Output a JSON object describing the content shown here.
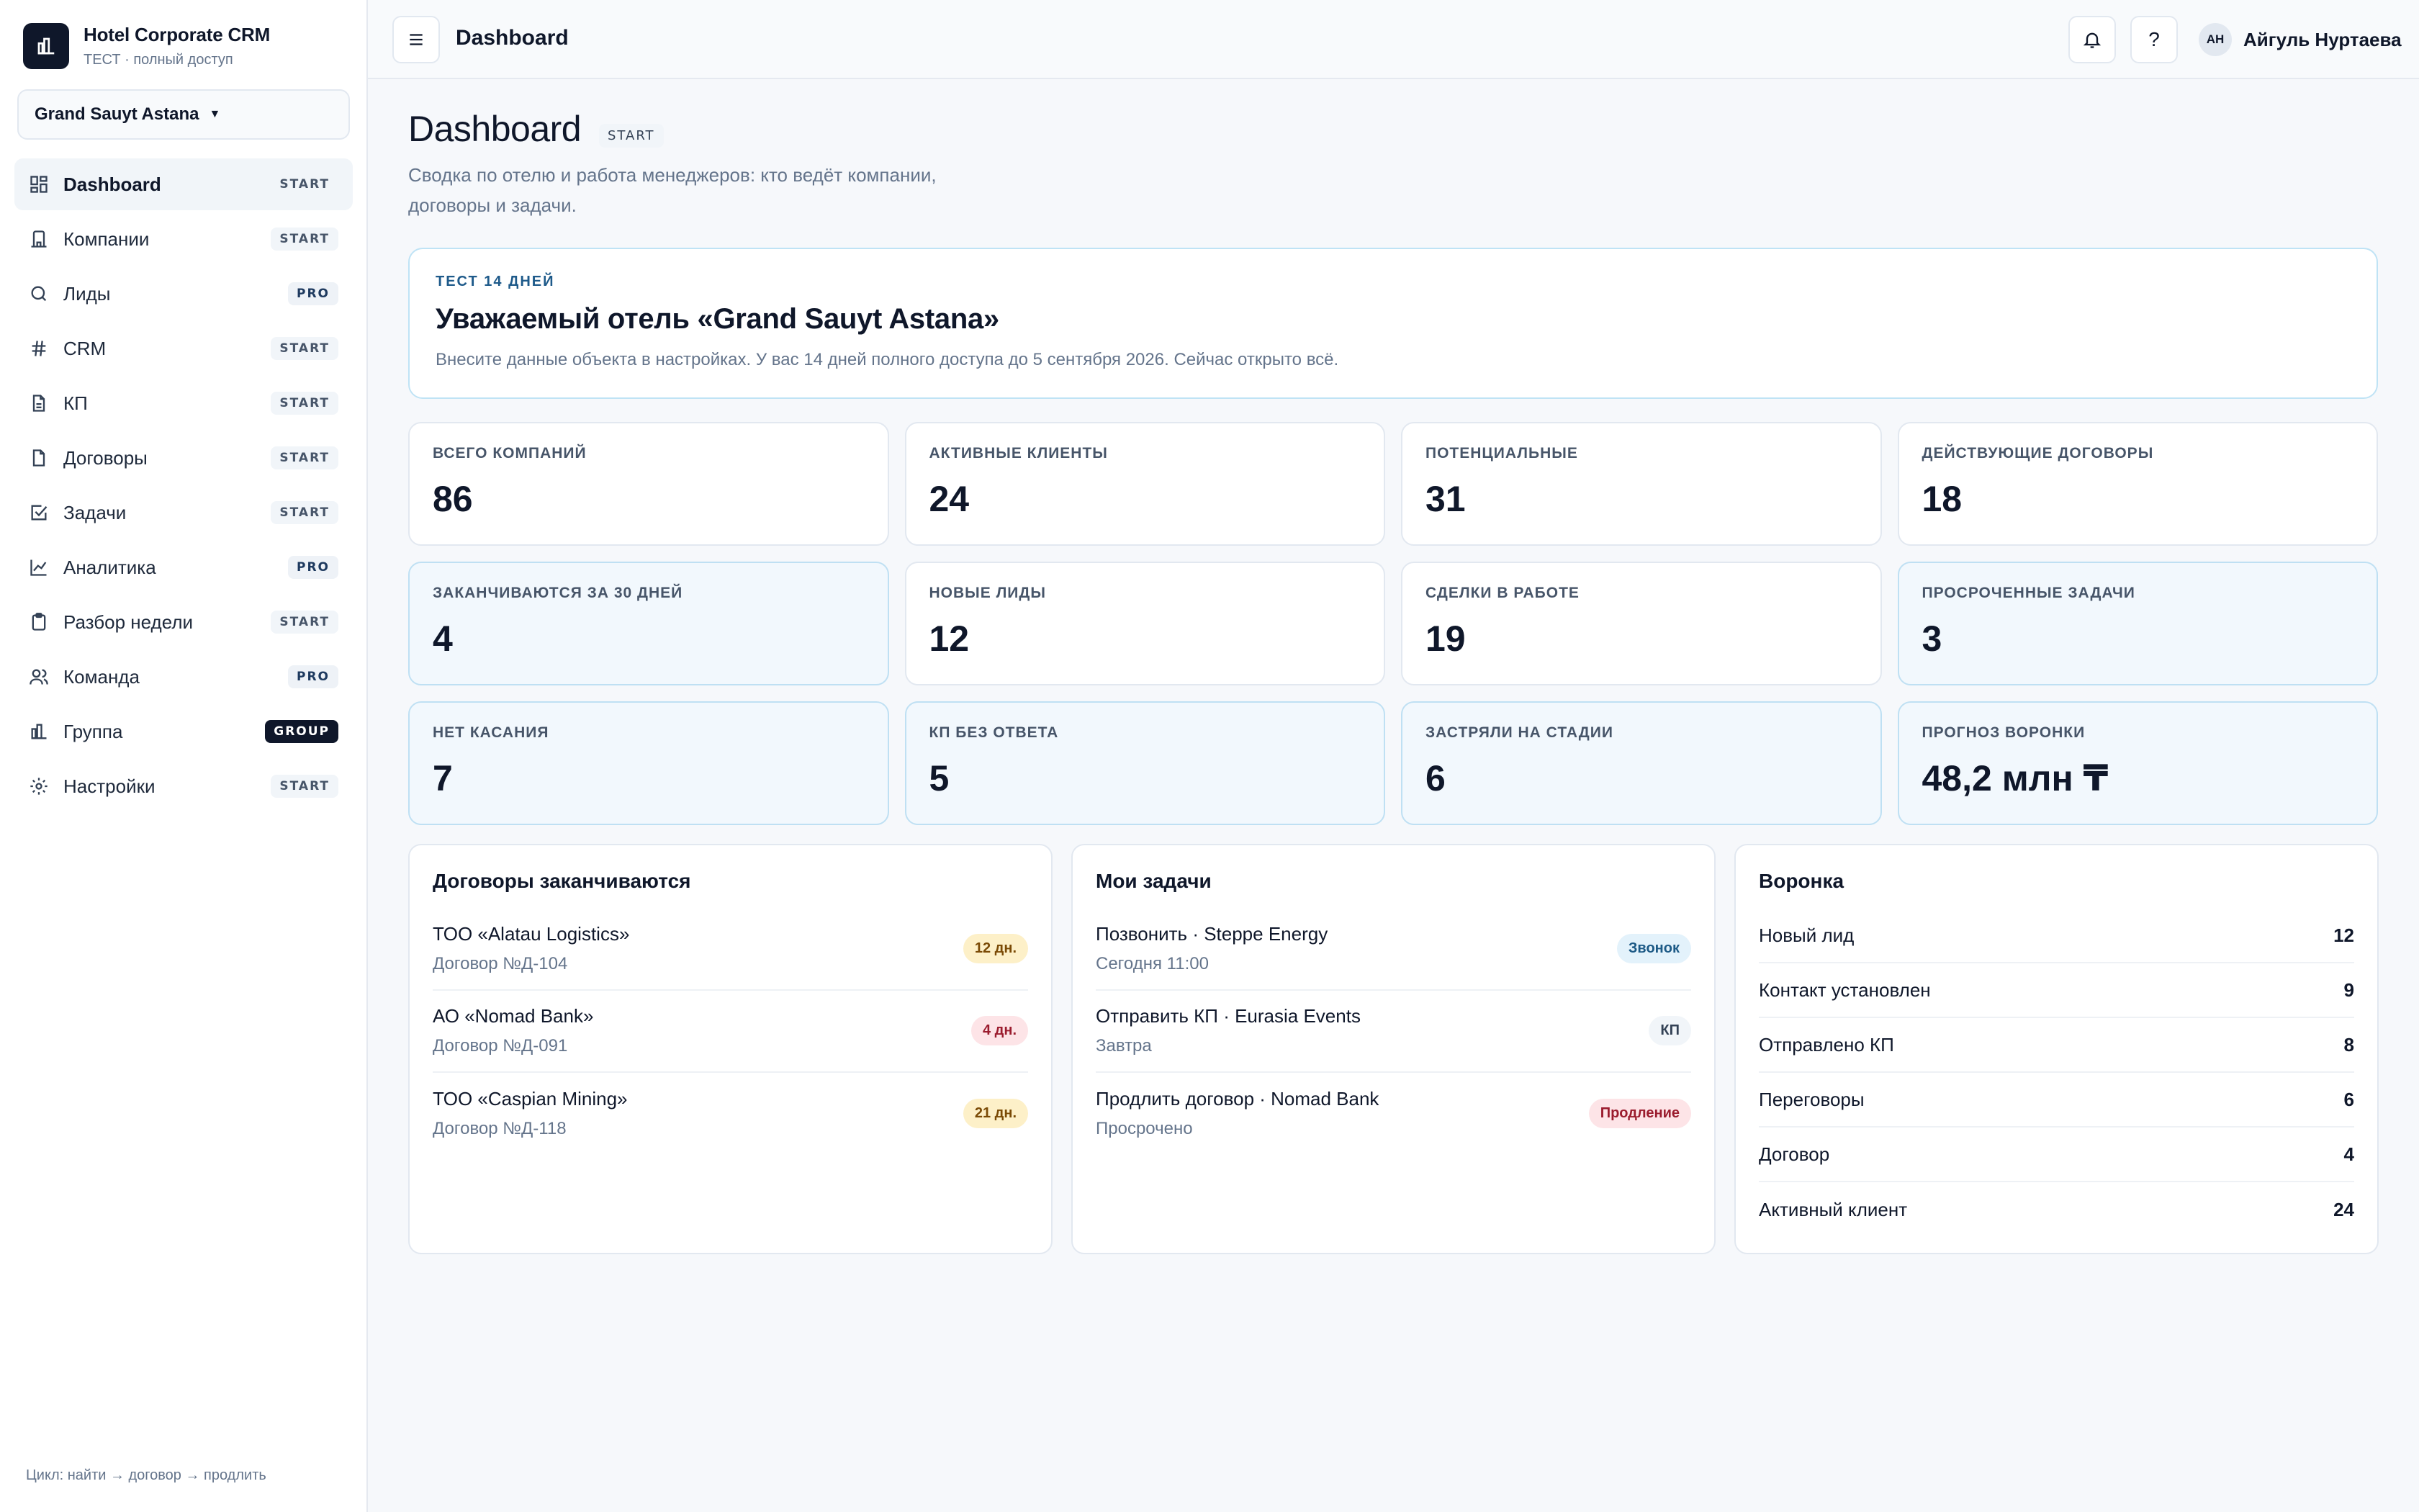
{
  "app": {
    "title": "Hotel Corporate CRM",
    "subtitle": "ТЕСТ · полный доступ"
  },
  "hotel_selector": {
    "value": "Grand Sauyt Astana"
  },
  "sidebar": {
    "items": [
      {
        "label": "Dashboard",
        "badge": "START",
        "icon": "dashboard-icon"
      },
      {
        "label": "Компании",
        "badge": "START",
        "icon": "building-icon"
      },
      {
        "label": "Лиды",
        "badge": "PRO",
        "icon": "search-icon"
      },
      {
        "label": "CRM",
        "badge": "START",
        "icon": "hash-icon"
      },
      {
        "label": "КП",
        "badge": "START",
        "icon": "file-text-icon"
      },
      {
        "label": "Договоры",
        "badge": "START",
        "icon": "file-icon"
      },
      {
        "label": "Задачи",
        "badge": "START",
        "icon": "check-square-icon"
      },
      {
        "label": "Аналитика",
        "badge": "PRO",
        "icon": "line-chart-icon"
      },
      {
        "label": "Разбор недели",
        "badge": "START",
        "icon": "clipboard-icon"
      },
      {
        "label": "Команда",
        "badge": "PRO",
        "icon": "users-icon"
      },
      {
        "label": "Группа",
        "badge": "GROUP",
        "icon": "bar-chart-icon"
      },
      {
        "label": "Настройки",
        "badge": "START",
        "icon": "gear-icon"
      }
    ],
    "footer": "Цикл: найти → договор → продлить"
  },
  "header": {
    "title": "Dashboard",
    "help": "?",
    "user": {
      "initials": "АН",
      "name": "Айгуль Нуртаева"
    }
  },
  "page": {
    "title": "Dashboard",
    "badge": "START",
    "description": "Сводка по отелю и работа менеджеров: кто ведёт компании, договоры и задачи."
  },
  "trial": {
    "tag": "ТЕСТ 14 ДНЕЙ",
    "title": "Уважаемый отель «Grand Sauyt Astana»",
    "text": "Внесите данные объекта в настройках. У вас 14 дней полного доступа до 5 сентября 2026. Сейчас открыто всё."
  },
  "stats": [
    {
      "label": "ВСЕГО КОМПАНИЙ",
      "value": "86"
    },
    {
      "label": "АКТИВНЫЕ КЛИЕНТЫ",
      "value": "24"
    },
    {
      "label": "ПОТЕНЦИАЛЬНЫЕ",
      "value": "31"
    },
    {
      "label": "ДЕЙСТВУЮЩИЕ ДОГОВОРЫ",
      "value": "18"
    },
    {
      "label": "ЗАКАНЧИВАЮТСЯ ЗА 30 ДНЕЙ",
      "value": "4"
    },
    {
      "label": "НОВЫЕ ЛИДЫ",
      "value": "12"
    },
    {
      "label": "СДЕЛКИ В РАБОТЕ",
      "value": "19"
    },
    {
      "label": "ПРОСРОЧЕННЫЕ ЗАДАЧИ",
      "value": "3"
    },
    {
      "label": "НЕТ КАСАНИЯ",
      "value": "7"
    },
    {
      "label": "КП БЕЗ ОТВЕТА",
      "value": "5"
    },
    {
      "label": "ЗАСТРЯЛИ НА СТАДИИ",
      "value": "6"
    },
    {
      "label": "ПРОГНОЗ ВОРОНКИ",
      "value": "48,2 млн ₸"
    }
  ],
  "contracts": {
    "title": "Договоры заканчиваются",
    "items": [
      {
        "name": "ТОО «Alatau Logistics»",
        "sub": "Договор №Д-104",
        "pill": "12 дн."
      },
      {
        "name": "АО «Nomad Bank»",
        "sub": "Договор №Д-091",
        "pill": "4 дн."
      },
      {
        "name": "ТОО «Caspian Mining»",
        "sub": "Договор №Д-118",
        "pill": "21 дн."
      }
    ]
  },
  "tasks": {
    "title": "Мои задачи",
    "items": [
      {
        "name": "Позвонить · Steppe Energy",
        "sub": "Сегодня 11:00",
        "pill": "Звонок"
      },
      {
        "name": "Отправить КП · Eurasia Events",
        "sub": "Завтра",
        "pill": "КП"
      },
      {
        "name": "Продлить договор · Nomad Bank",
        "sub": "Просрочено",
        "pill": "Продление"
      }
    ]
  },
  "funnel": {
    "title": "Воронка",
    "items": [
      {
        "label": "Новый лид",
        "value": "12"
      },
      {
        "label": "Контакт установлен",
        "value": "9"
      },
      {
        "label": "Отправлено КП",
        "value": "8"
      },
      {
        "label": "Переговоры",
        "value": "6"
      },
      {
        "label": "Договор",
        "value": "4"
      },
      {
        "label": "Активный клиент",
        "value": "24"
      }
    ]
  },
  "colors": {
    "primary": "#0f172a",
    "highlight_bg": "#f2f8fd",
    "highlight_border": "#bfe0f3",
    "warn": "#fdf0c8",
    "danger": "#fde4e7",
    "info": "#e3f2fb"
  }
}
